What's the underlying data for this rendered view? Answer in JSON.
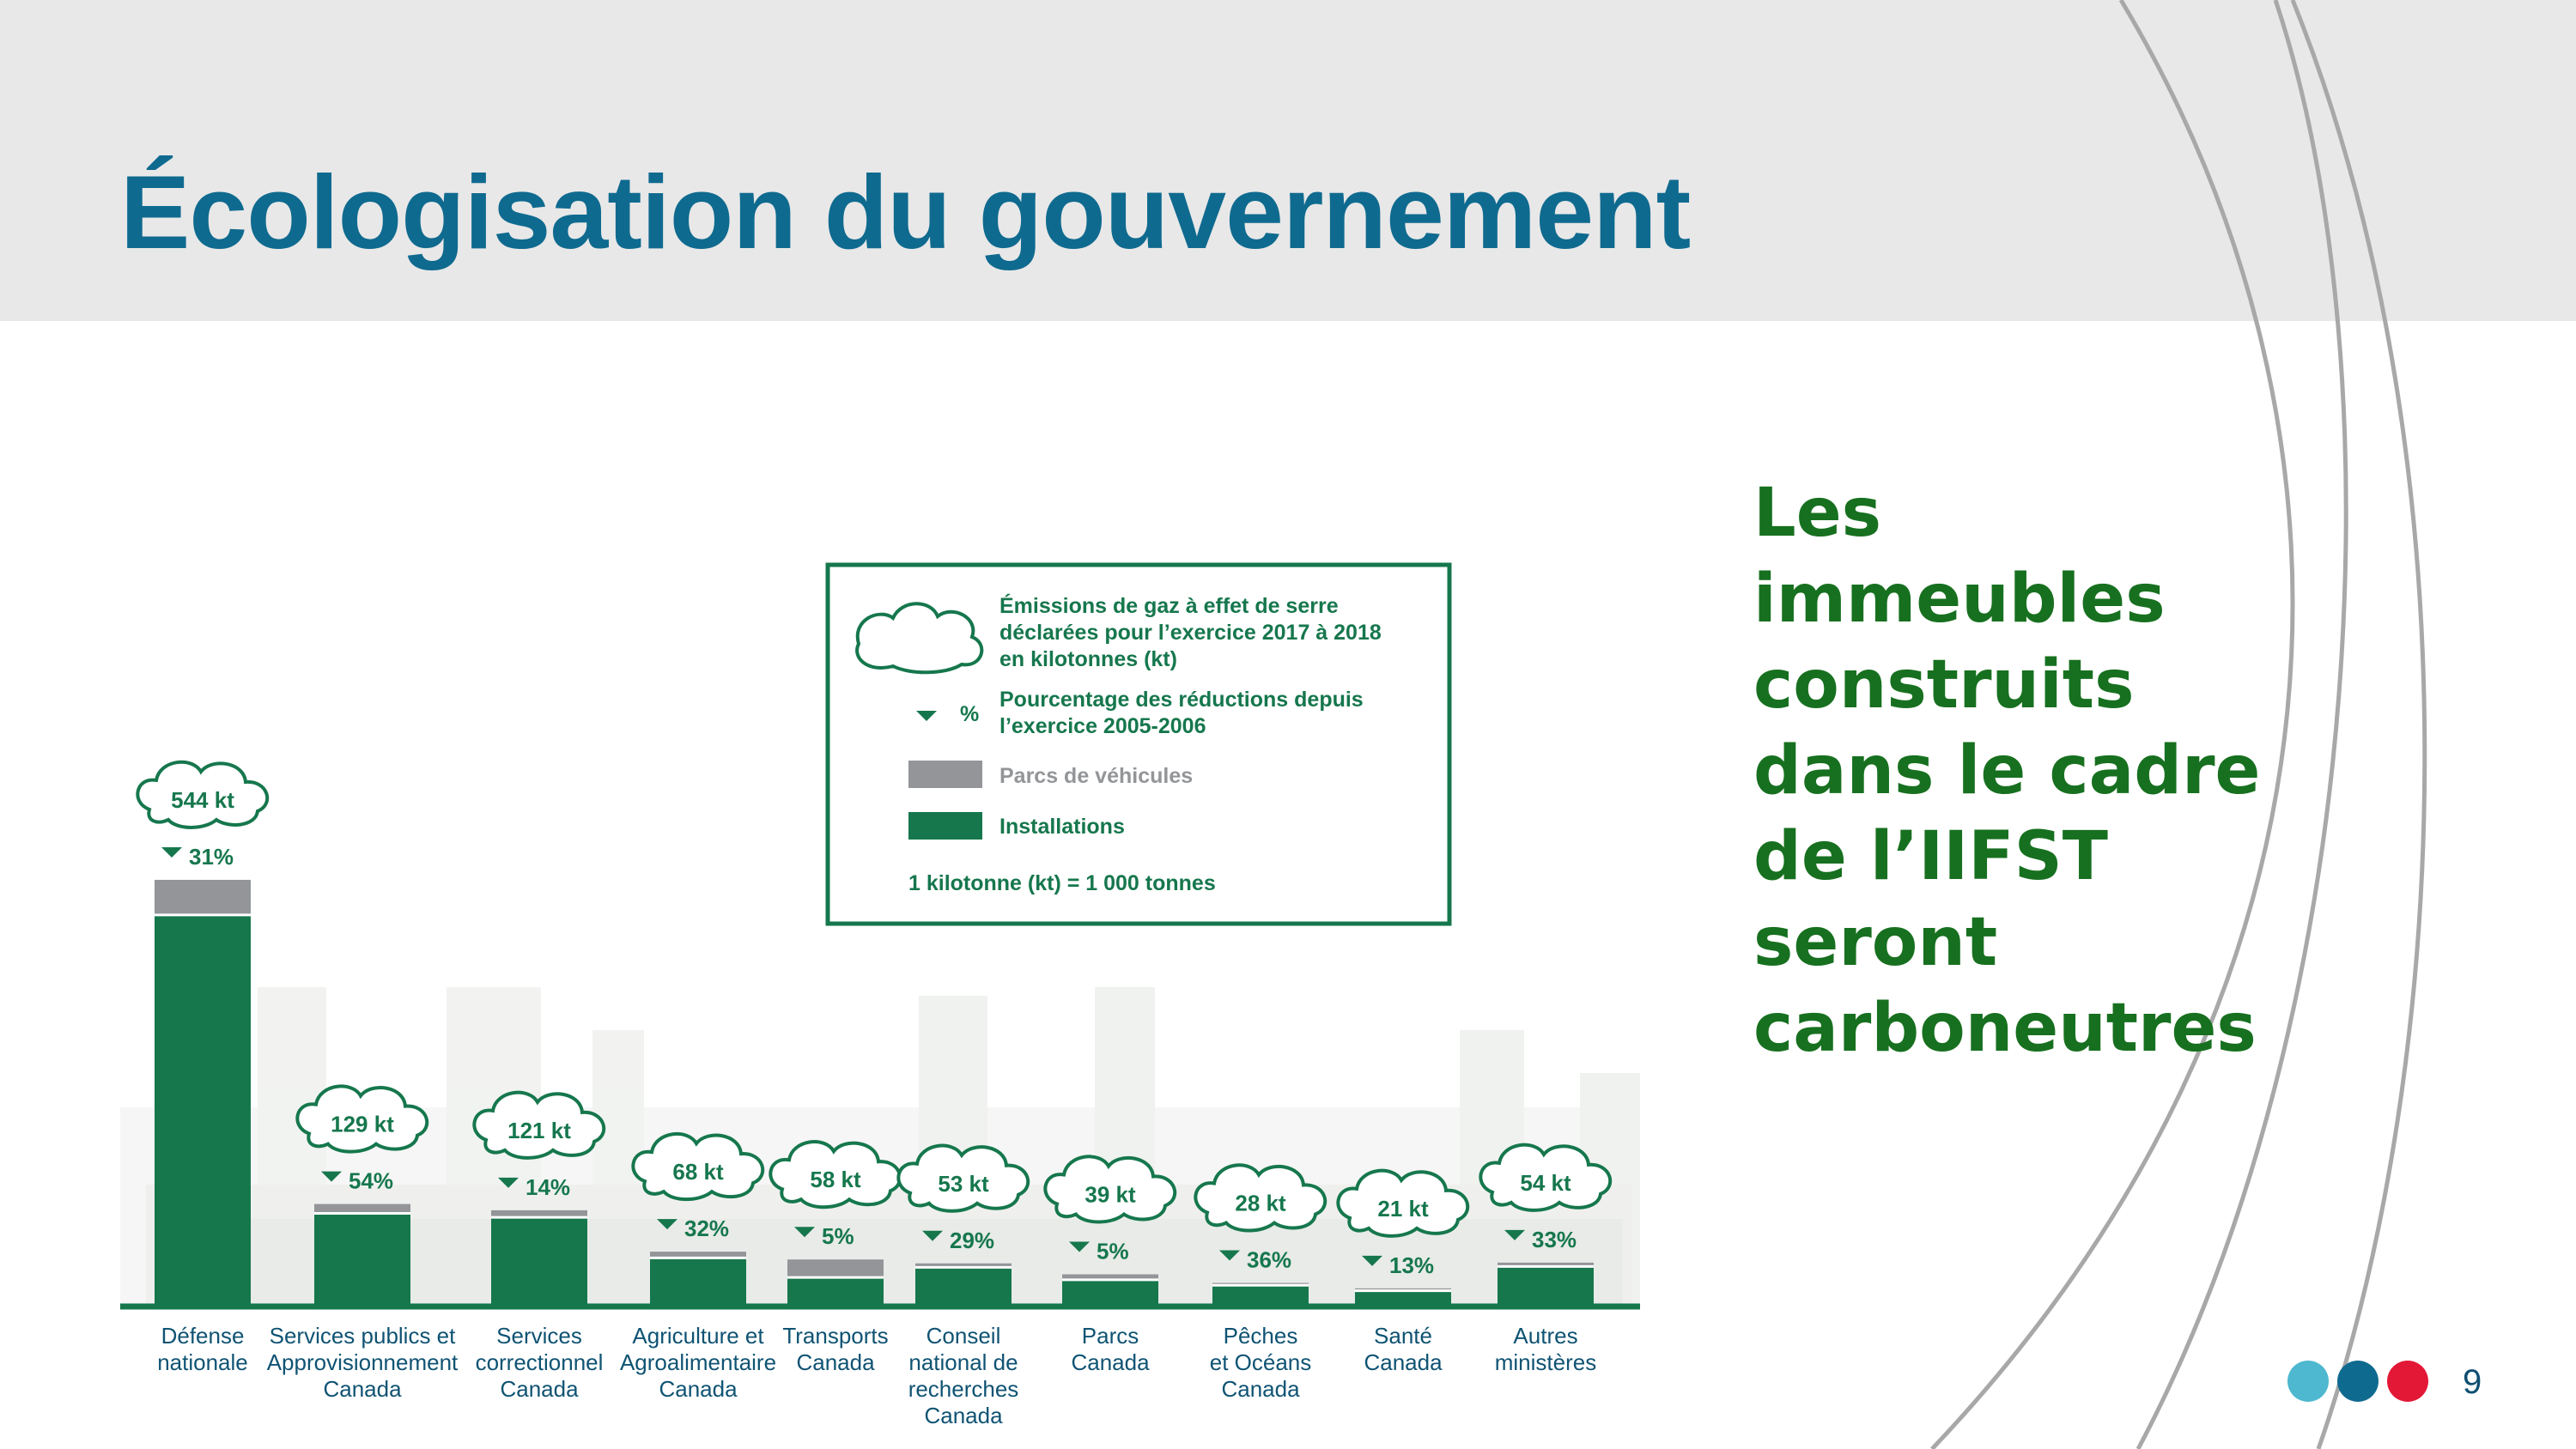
{
  "slide": {
    "title": "Écologisation du gouvernement",
    "callout_text": "Les immeubles construits dans le cadre de l’IIFST seront carboneutres",
    "page_number": "9",
    "nav_dots": [
      {
        "name": "light-blue",
        "color": "#4db8d0"
      },
      {
        "name": "dark-blue",
        "color": "#0f6a8f"
      },
      {
        "name": "red",
        "color": "#e31837"
      }
    ]
  },
  "colors": {
    "title": "#0f6a8f",
    "callout": "#17701f",
    "installations": "#16774d",
    "vehicles": "#939598",
    "header_band": "#e8e8e8",
    "baseline": "#16774d"
  },
  "chart_data": {
    "type": "bar",
    "stacked": true,
    "categories": [
      [
        "Défense",
        "nationale"
      ],
      [
        "Services publics et",
        "Approvisionnement",
        "Canada"
      ],
      [
        "Services",
        "correctionnel",
        "Canada"
      ],
      [
        "Agriculture et",
        "Agroalimentaire",
        "Canada"
      ],
      [
        "Transports",
        "Canada"
      ],
      [
        "Conseil",
        "national de",
        "recherches",
        "Canada"
      ],
      [
        "Parcs",
        "Canada"
      ],
      [
        "Pêches",
        "et Océans",
        "Canada"
      ],
      [
        "Santé",
        "Canada"
      ],
      [
        "Autres",
        "ministères"
      ]
    ],
    "series": [
      {
        "name": "Installations",
        "color": "#16774d",
        "values": [
          499,
          117,
          112,
          60,
          35,
          48,
          32,
          25,
          18,
          49
        ]
      },
      {
        "name": "Parcs de véhicules",
        "color": "#939598",
        "values": [
          45,
          12,
          9,
          8,
          23,
          5,
          7,
          3,
          3,
          5
        ]
      }
    ],
    "totals": [
      "544 kt",
      "129 kt",
      "121 kt",
      "68 kt",
      "58 kt",
      "53 kt",
      "39 kt",
      "28 kt",
      "21 kt",
      "54 kt"
    ],
    "reductions": [
      "31%",
      "54%",
      "14%",
      "32%",
      "5%",
      "29%",
      "5%",
      "36%",
      "13%",
      "33%"
    ],
    "ylim": [
      0,
      560
    ],
    "legend": {
      "position": "center",
      "cloud_label": [
        "Émissions de gaz à effet de serre",
        "déclarées pour l’exercice 2017 à 2018",
        "en kilotonnes (kt)"
      ],
      "arrow_symbol": "%",
      "arrow_label": [
        "Pourcentage des réductions depuis",
        "l’exercice 2005-2006"
      ],
      "vehicles_label": "Parcs de véhicules",
      "installations_label": "Installations",
      "note": "1 kilotonne (kt) = 1 000 tonnes"
    }
  }
}
